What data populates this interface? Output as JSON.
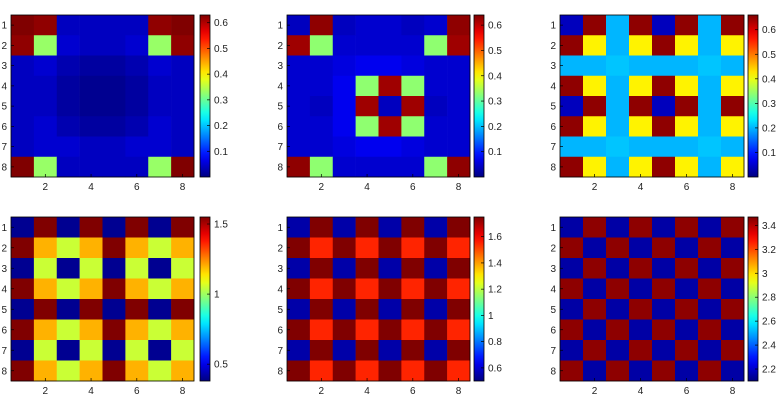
{
  "chart_data": [
    {
      "type": "heatmap",
      "title": "",
      "xlabel": "",
      "ylabel": "",
      "rows": [
        "1",
        "2",
        "3",
        "4",
        "5",
        "6",
        "7",
        "8"
      ],
      "xticks": [
        "2",
        "4",
        "6",
        "8"
      ],
      "colormap": "jet",
      "clim": [
        0.0,
        0.63
      ],
      "colorbar_ticks": [
        "0.1",
        "0.2",
        "0.3",
        "0.4",
        "0.5",
        "0.6"
      ],
      "values": [
        [
          0.63,
          0.62,
          0.04,
          0.04,
          0.04,
          0.04,
          0.62,
          0.63
        ],
        [
          0.62,
          0.33,
          0.05,
          0.04,
          0.04,
          0.05,
          0.33,
          0.62
        ],
        [
          0.04,
          0.05,
          0.03,
          0.02,
          0.02,
          0.03,
          0.05,
          0.04
        ],
        [
          0.04,
          0.04,
          0.02,
          0.01,
          0.01,
          0.02,
          0.04,
          0.04
        ],
        [
          0.04,
          0.04,
          0.02,
          0.01,
          0.01,
          0.02,
          0.04,
          0.04
        ],
        [
          0.04,
          0.05,
          0.03,
          0.02,
          0.02,
          0.03,
          0.05,
          0.04
        ],
        [
          0.04,
          0.05,
          0.05,
          0.04,
          0.04,
          0.05,
          0.05,
          0.04
        ],
        [
          0.63,
          0.33,
          0.04,
          0.04,
          0.04,
          0.04,
          0.33,
          0.63
        ]
      ]
    },
    {
      "type": "heatmap",
      "title": "",
      "xlabel": "",
      "ylabel": "",
      "rows": [
        "1",
        "2",
        "3",
        "4",
        "5",
        "6",
        "7",
        "8"
      ],
      "xticks": [
        "2",
        "4",
        "6",
        "8"
      ],
      "colormap": "jet",
      "clim": [
        0.0,
        0.64
      ],
      "colorbar_ticks": [
        "0.1",
        "0.2",
        "0.3",
        "0.4",
        "0.5",
        "0.6"
      ],
      "values": [
        [
          0.04,
          0.63,
          0.04,
          0.05,
          0.05,
          0.04,
          0.05,
          0.63
        ],
        [
          0.62,
          0.33,
          0.05,
          0.05,
          0.05,
          0.05,
          0.33,
          0.62
        ],
        [
          0.05,
          0.05,
          0.06,
          0.07,
          0.07,
          0.06,
          0.05,
          0.05
        ],
        [
          0.05,
          0.05,
          0.07,
          0.33,
          0.62,
          0.33,
          0.05,
          0.05
        ],
        [
          0.05,
          0.04,
          0.07,
          0.62,
          0.04,
          0.62,
          0.04,
          0.05
        ],
        [
          0.05,
          0.05,
          0.07,
          0.33,
          0.62,
          0.33,
          0.05,
          0.05
        ],
        [
          0.05,
          0.05,
          0.06,
          0.07,
          0.07,
          0.06,
          0.05,
          0.05
        ],
        [
          0.63,
          0.33,
          0.05,
          0.05,
          0.05,
          0.05,
          0.33,
          0.63
        ]
      ]
    },
    {
      "type": "heatmap",
      "title": "",
      "xlabel": "",
      "ylabel": "",
      "rows": [
        "1",
        "2",
        "3",
        "4",
        "5",
        "6",
        "7",
        "8"
      ],
      "xticks": [
        "2",
        "4",
        "6",
        "8"
      ],
      "colormap": "jet",
      "clim": [
        0.0,
        0.66
      ],
      "colorbar_ticks": [
        "0.1",
        "0.2",
        "0.3",
        "0.4",
        "0.5",
        "0.6"
      ],
      "values": [
        [
          0.04,
          0.65,
          0.2,
          0.65,
          0.04,
          0.65,
          0.2,
          0.65
        ],
        [
          0.65,
          0.42,
          0.2,
          0.42,
          0.65,
          0.42,
          0.2,
          0.42
        ],
        [
          0.2,
          0.2,
          0.21,
          0.2,
          0.2,
          0.2,
          0.21,
          0.2
        ],
        [
          0.65,
          0.42,
          0.2,
          0.42,
          0.65,
          0.42,
          0.2,
          0.42
        ],
        [
          0.04,
          0.65,
          0.2,
          0.65,
          0.04,
          0.65,
          0.2,
          0.65
        ],
        [
          0.65,
          0.42,
          0.2,
          0.42,
          0.65,
          0.42,
          0.2,
          0.42
        ],
        [
          0.2,
          0.2,
          0.21,
          0.2,
          0.2,
          0.2,
          0.21,
          0.2
        ],
        [
          0.65,
          0.42,
          0.2,
          0.42,
          0.65,
          0.42,
          0.2,
          0.42
        ]
      ]
    },
    {
      "type": "heatmap",
      "title": "",
      "xlabel": "",
      "ylabel": "",
      "rows": [
        "1",
        "2",
        "3",
        "4",
        "5",
        "6",
        "7",
        "8"
      ],
      "xticks": [
        "2",
        "4",
        "6",
        "8"
      ],
      "colormap": "jet",
      "clim": [
        0.38,
        1.55
      ],
      "colorbar_ticks": [
        "0.5",
        "1",
        "1.5"
      ],
      "values": [
        [
          0.4,
          1.55,
          0.4,
          1.55,
          0.4,
          1.55,
          0.4,
          1.55
        ],
        [
          1.55,
          1.2,
          1.05,
          1.2,
          1.55,
          1.2,
          1.05,
          1.2
        ],
        [
          0.4,
          1.05,
          0.4,
          1.05,
          0.4,
          1.05,
          0.4,
          1.05
        ],
        [
          1.55,
          1.2,
          1.05,
          1.2,
          1.55,
          1.2,
          1.05,
          1.2
        ],
        [
          0.4,
          1.55,
          0.4,
          1.55,
          0.4,
          1.55,
          0.4,
          1.55
        ],
        [
          1.55,
          1.2,
          1.05,
          1.2,
          1.55,
          1.2,
          1.05,
          1.2
        ],
        [
          0.4,
          1.05,
          0.4,
          1.05,
          0.4,
          1.05,
          0.4,
          1.05
        ],
        [
          1.55,
          1.2,
          1.05,
          1.2,
          1.55,
          1.2,
          1.05,
          1.2
        ]
      ]
    },
    {
      "type": "heatmap",
      "title": "",
      "xlabel": "",
      "ylabel": "",
      "rows": [
        "1",
        "2",
        "3",
        "4",
        "5",
        "6",
        "7",
        "8"
      ],
      "xticks": [
        "2",
        "4",
        "6",
        "8"
      ],
      "colormap": "jet",
      "clim": [
        0.5,
        1.75
      ],
      "colorbar_ticks": [
        "0.6",
        "0.8",
        "1",
        "1.2",
        "1.4",
        "1.6"
      ],
      "values": [
        [
          0.55,
          1.75,
          0.55,
          1.75,
          0.55,
          1.75,
          0.55,
          1.75
        ],
        [
          1.75,
          1.55,
          1.75,
          1.55,
          1.75,
          1.55,
          1.75,
          1.55
        ],
        [
          0.55,
          1.75,
          0.55,
          1.75,
          0.55,
          1.75,
          0.55,
          1.75
        ],
        [
          1.75,
          1.55,
          1.75,
          1.55,
          1.75,
          1.55,
          1.75,
          1.55
        ],
        [
          0.55,
          1.75,
          0.55,
          1.75,
          0.55,
          1.75,
          0.55,
          1.75
        ],
        [
          1.75,
          1.55,
          1.75,
          1.55,
          1.75,
          1.55,
          1.75,
          1.55
        ],
        [
          0.55,
          1.75,
          0.55,
          1.75,
          0.55,
          1.75,
          0.55,
          1.75
        ],
        [
          1.75,
          1.55,
          1.75,
          1.55,
          1.75,
          1.55,
          1.75,
          1.55
        ]
      ]
    },
    {
      "type": "heatmap",
      "title": "",
      "xlabel": "",
      "ylabel": "",
      "rows": [
        "1",
        "2",
        "3",
        "4",
        "5",
        "6",
        "7",
        "8"
      ],
      "xticks": [
        "2",
        "4",
        "6",
        "8"
      ],
      "colormap": "jet",
      "clim": [
        2.1,
        3.47
      ],
      "colorbar_ticks": [
        "2.2",
        "2.4",
        "2.6",
        "2.8",
        "3",
        "3.2",
        "3.4"
      ],
      "values": [
        [
          2.15,
          3.45,
          2.15,
          3.45,
          2.15,
          3.45,
          2.15,
          3.45
        ],
        [
          3.45,
          2.15,
          3.45,
          2.15,
          3.45,
          2.15,
          3.45,
          2.15
        ],
        [
          2.15,
          3.45,
          2.15,
          3.45,
          2.15,
          3.45,
          2.15,
          3.45
        ],
        [
          3.45,
          2.15,
          3.45,
          2.15,
          3.45,
          2.15,
          3.45,
          2.15
        ],
        [
          2.15,
          3.45,
          2.15,
          3.45,
          2.15,
          3.45,
          2.15,
          3.45
        ],
        [
          3.45,
          2.15,
          3.45,
          2.15,
          3.45,
          2.15,
          3.45,
          2.15
        ],
        [
          2.15,
          3.45,
          2.15,
          3.45,
          2.15,
          3.45,
          2.15,
          3.45
        ],
        [
          3.45,
          2.15,
          3.45,
          2.15,
          3.45,
          2.15,
          3.45,
          2.15
        ]
      ]
    }
  ]
}
